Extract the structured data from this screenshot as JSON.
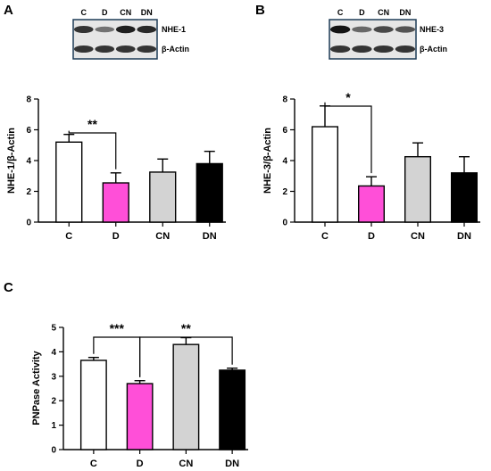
{
  "panels": [
    {
      "letter": "A",
      "blot": {
        "lanes": [
          "C",
          "D",
          "CN",
          "DN"
        ],
        "rows": [
          {
            "label": "NHE-1",
            "intensity": [
              0.85,
              0.55,
              0.95,
              0.9
            ]
          },
          {
            "label": "β-Actin",
            "intensity": [
              0.85,
              0.85,
              0.85,
              0.85
            ]
          }
        ]
      }
    },
    {
      "letter": "B",
      "blot": {
        "lanes": [
          "C",
          "D",
          "CN",
          "DN"
        ],
        "rows": [
          {
            "label": "NHE-3",
            "intensity": [
              1.0,
              0.6,
              0.75,
              0.7
            ]
          },
          {
            "label": "β-Actin",
            "intensity": [
              0.85,
              0.85,
              0.85,
              0.85
            ]
          }
        ]
      }
    },
    {
      "letter": "C",
      "blot": null
    }
  ],
  "chart_data": [
    {
      "type": "bar",
      "categories": [
        "C",
        "D",
        "CN",
        "DN"
      ],
      "values": [
        5.2,
        2.55,
        3.25,
        3.8
      ],
      "errors": [
        0.5,
        0.65,
        0.85,
        0.8
      ],
      "colors": [
        "#ffffff",
        "#ff4fd8",
        "#d3d3d3",
        "#000000"
      ],
      "xlabel": "",
      "ylabel": "NHE-1/β-Actin",
      "ylim": [
        0,
        8
      ],
      "yticks": [
        0,
        2,
        4,
        6,
        8
      ],
      "significance": [
        {
          "from": "C",
          "to": "D",
          "label": "**"
        }
      ]
    },
    {
      "type": "bar",
      "categories": [
        "C",
        "D",
        "CN",
        "DN"
      ],
      "values": [
        6.2,
        2.35,
        4.25,
        3.2
      ],
      "errors": [
        1.35,
        0.6,
        0.9,
        1.05
      ],
      "colors": [
        "#ffffff",
        "#ff4fd8",
        "#d3d3d3",
        "#000000"
      ],
      "xlabel": "",
      "ylabel": "NHE-3/β-Actin",
      "ylim": [
        0,
        8
      ],
      "yticks": [
        0,
        2,
        4,
        6,
        8
      ],
      "significance": [
        {
          "from": "C",
          "to": "D",
          "label": "*"
        }
      ]
    },
    {
      "type": "bar",
      "categories": [
        "C",
        "D",
        "CN",
        "DN"
      ],
      "values": [
        3.65,
        2.7,
        4.3,
        3.25
      ],
      "errors": [
        0.12,
        0.12,
        0.28,
        0.08
      ],
      "colors": [
        "#ffffff",
        "#ff4fd8",
        "#d3d3d3",
        "#000000"
      ],
      "xlabel": "",
      "ylabel": "PNPase Activity",
      "ylim": [
        0,
        5
      ],
      "yticks": [
        0,
        1,
        2,
        3,
        4,
        5
      ],
      "significance": [
        {
          "from": "C",
          "to": "D",
          "label": "***"
        },
        {
          "from": "D",
          "to": "DN",
          "label": "**"
        }
      ]
    }
  ]
}
